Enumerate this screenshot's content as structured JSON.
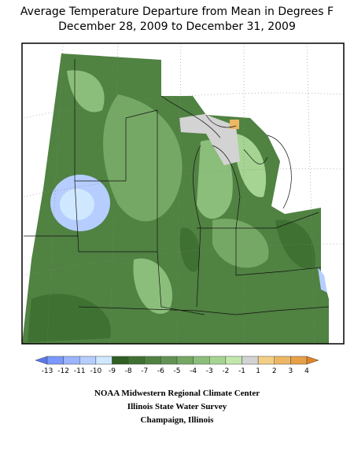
{
  "header": {
    "title_line1": "Average Temperature Departure from Mean in Degrees F",
    "title_line2": "December 28, 2009 to December 31, 2009"
  },
  "legend": {
    "labels": [
      -13,
      -12,
      -11,
      -10,
      -9,
      -8,
      -7,
      -6,
      -5,
      -4,
      -3,
      -2,
      -1,
      1,
      2,
      3,
      4
    ],
    "colors": [
      "#5a78ee",
      "#7a98ff",
      "#9ab4ff",
      "#b6cdff",
      "#d0e8ff",
      "#2f5f22",
      "#3f7132",
      "#508242",
      "#629354",
      "#76a865",
      "#8cbe7b",
      "#a6d492",
      "#c3e6ab",
      "#d3d3d3",
      "#f2cf85",
      "#ecb765",
      "#e6a047",
      "#e08325"
    ]
  },
  "credits": {
    "line1": "NOAA Midwestern Regional Climate Center",
    "line2": "Illinois State Water Survey",
    "line3": "Champaign, Illinois"
  }
}
